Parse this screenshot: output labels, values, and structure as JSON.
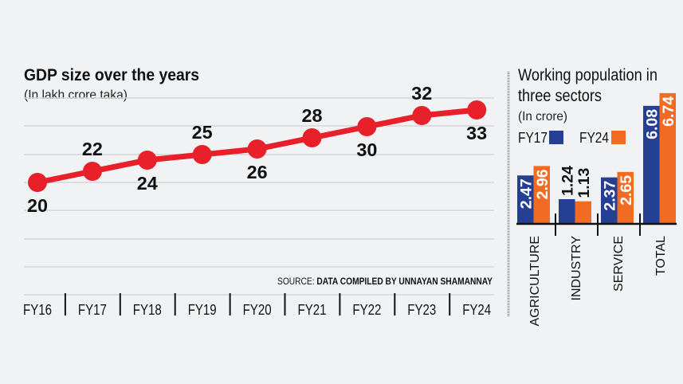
{
  "chart_data": [
    {
      "type": "line",
      "title": "GDP size over the years",
      "subtitle": "(In lakh crore taka)",
      "categories": [
        "FY16",
        "FY17",
        "FY18",
        "FY19",
        "FY20",
        "FY21",
        "FY22",
        "FY23",
        "FY24"
      ],
      "values": [
        20,
        22,
        24,
        25,
        26,
        28,
        30,
        32,
        33
      ],
      "value_labels": [
        "20",
        "22",
        "24",
        "25",
        "26",
        "28",
        "30",
        "32",
        "33"
      ],
      "color": "#e8202a",
      "grid": true,
      "source_prefix": "SOURCE: ",
      "source": "DATA COMPILED BY UNNAYAN SHAMANNAY"
    },
    {
      "type": "bar",
      "title_line1": "Working population in",
      "title_line2": "three sectors",
      "subtitle": "(In crore)",
      "categories": [
        "AGRICULTURE",
        "INDUSTRY",
        "SERVICE",
        "TOTAL"
      ],
      "series": [
        {
          "name": "FY17",
          "color": "#253f93",
          "values": [
            2.47,
            1.24,
            2.37,
            6.08
          ],
          "labels": [
            "2.47",
            "1.24",
            "2.37",
            "6.08"
          ]
        },
        {
          "name": "FY24",
          "color": "#f26b22",
          "values": [
            2.96,
            1.13,
            2.65,
            6.74
          ],
          "labels": [
            "2.96",
            "1.13",
            "2.65",
            "6.74"
          ]
        }
      ],
      "legend": "top"
    }
  ]
}
